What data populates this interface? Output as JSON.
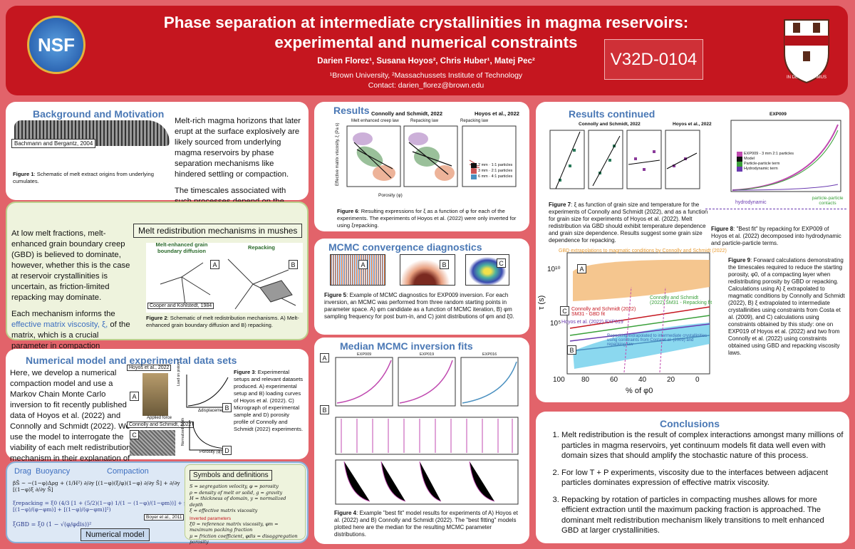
{
  "header": {
    "logo_left": "NSF",
    "title_line1": "Phase separation at intermediate crystallinities in magma reservoirs:",
    "title_line2": "experimental and numerical constraints",
    "authors": "Darien Florez¹, Susana Hoyos², Chris Huber¹, Matej Pec²",
    "affiliations": "¹Brown University, ²Massachussets Institute of Technology",
    "contact": "Contact: darien_florez@brown.edu",
    "poster_id": "V32D-0104",
    "logo_right_motto": "IN DEO SPERAMUS"
  },
  "background": {
    "heading": "Background and Motivation",
    "figure_credit": "Bachmann and Bergantz, 2004",
    "caption_label": "Figure 1",
    "caption": ": Schematic of melt extract origins from underlying cumulates.",
    "paragraphs": [
      "Melt-rich magma horizons that later erupt at the surface explosively are likely sourced from underlying magma reservoirs by phase separation mechanisms like hindered settling or compaction.",
      "The timescales associated with such processes depend on the \"melt redistribution\" mechanism, which operate at the grain scale."
    ]
  },
  "redistribution": {
    "paragraph1": "At low melt fractions, melt-enhanced grain boundary creep (GBD) is believed to dominate, however, whether this is the case at reservoir crystallinities is uncertain, as friction-limited repacking may dominate.",
    "paragraph2_start": "Each mechanism informs the ",
    "paragraph2_highlight": "effective matrix viscosity, ξ,",
    "paragraph2_end": " of the matrix, which is a crucial parameter in compaction calculations.",
    "box_title": "Melt redistribution mechanisms in mushes",
    "panel_a_title": "Melt-enhanced grain boundary diffusion",
    "panel_b_title": "Repacking",
    "panel_a_label": "A",
    "panel_b_label": "B",
    "figure_credit": "Cooper and Kohlstedt, 1984",
    "caption_label": "Figure 2",
    "caption": ": Schematic of melt redistribution mechanisms. A) Melt-enhanced grain boundary diffusion and B) repacking."
  },
  "numerical": {
    "heading": "Numerical model and experimental data sets",
    "paragraph": "Here, we develop a numerical compaction model and use a Markov Chain Monte Carlo inversion to fit recently published data of Hoyos et al. (2022) and Connolly and Schmidt (2022). We use the model to interrogate the viability of each melt redistribution mechanism in their explanation of the experimental data.",
    "credit_top": "Hoyos et al., 2022",
    "credit_bottom": "Connolly and Schmidt, 2022",
    "applied_force": "Applied force",
    "load_label": "Load on piston, t",
    "displacement_label": "Δdisplacement",
    "depth_label": "Normalized depth",
    "porosity_label": "Porosity (φ)",
    "labels": [
      "A",
      "B",
      "C",
      "D"
    ],
    "caption_label": "Figure 3",
    "caption": ": Experimental setups and relevant datasets produced. A) experimental setup and B) loading curves of Hoyos et al. (2022). C) Micrograph of experimental sample and D) porosity profile of Connolly and Schmidt (2022) experiments."
  },
  "equations": {
    "term_labels": [
      "Drag",
      "Buoyancy",
      "Compaction"
    ],
    "eq1": "βS̃ ~ −(1−φ)Δρg + (1/H²) ∂/∂y [(1−φ)(ξ/φ)(1−φ) ∂/∂y S̃] + ∂/∂y [(1−φ)ξ ∂/∂y S̃]",
    "eq2": "ξrepacking = ξ0 (4/3 [1 + (5/2)(1−φ) 1/(1 − (1−φ)/(1−φm))] + μ [(1−φ)/(φ−φm)] + [(1−φ)/(φ−φm)]²)",
    "eq3": "ξGBD = ξ0 (1 − √(φ/φdis))²",
    "citation": "Boyer et al., 2011",
    "panel_label": "Numerical model",
    "symbols_title": "Symbols and definitions",
    "symbols": [
      "S = segregation velocity, φ = porosity",
      "ρ = density of melt or solid, g = gravity",
      "H = thickness of domain, y = normalized depth",
      "ξ = effective matrix viscosity"
    ],
    "inverted_title": "Inverted parameters",
    "inverted": [
      "ξ0 = reference matrix viscosity, φm = maximum packing fraction",
      "μ = friction coefficient, φdis = disaggregation porosity"
    ]
  },
  "results": {
    "heading": "Results",
    "group_titles": [
      "Connolly and Schmidt, 2022",
      "Hoyos et al., 2022"
    ],
    "panel_titles": [
      "Melt enhanced creep law",
      "Repacking law",
      "Repacking law"
    ],
    "y_label": "Effective matrix viscosity, ξ (Pa s)",
    "x_label": "Porosity (φ)",
    "legend": [
      "2 mm · 1:1 particles",
      "3 mm · 2:1 particles",
      "6 mm · 4:1 particles"
    ],
    "caption_label": "Figure 6",
    "caption": ": Resulting expressions for ξ as a function of φ for each of the experiments. The experiments of Hoyos et al. (2022) were only inverted for using ξrepacking."
  },
  "mcmc": {
    "heading": "MCMC convergence diagnostics",
    "labels": [
      "A",
      "B",
      "C"
    ],
    "caption_label": "Figure 5",
    "caption": ": Example of MCMC diagnostics for EXP009 inversion. For each inversion, an MCMC was performed from three random starting points in parameter space. A) φm candidate as a function of MCMC iteration, B) φm sampling frequency for post burn-in, and C) joint distributions of φm and ξ0."
  },
  "median": {
    "heading": "Median MCMC inversion fits",
    "labels": [
      "A",
      "B"
    ],
    "experiments": [
      "EXP009",
      "EXP019",
      "EXP016"
    ],
    "caption_label": "Figure 4",
    "caption": ": Example \"best fit\" model results for experiments of A) Hoyos et al. (2022) and B) Connolly and Schmidt (2022). The \"best fitting\" models plotted here are the median for the resulting MCMC parameter distributions."
  },
  "continued": {
    "heading": "Results continued",
    "fig7_titles": [
      "Connolly and Schmidt, 2022",
      "Hoyos et al., 2022"
    ],
    "fig7_caption_label": "Figure 7",
    "fig7_caption": ": ξ as function of grain size and temperature for the experiments of Connolly and Schmidt (2022), and as a function for grain size for experiments of Hoyos et al. (2022). Melt redistribution via GBD should exhibit temperature dependence and grain size dependence. Results suggest some grain size dependence for repacking.",
    "fig8_title": "EXP009",
    "fig8_legend": [
      "EXP009 - 3 mm 2:1 particles",
      "Model",
      "Particle-particle term",
      "Hydrodynamic term"
    ],
    "fig8_terms": [
      "hydrodynamic",
      "particle-particle contacts"
    ],
    "fig8_caption_label": "Figure 8",
    "fig8_caption": ": \"Best fit\" by repacking for EXP009 of Hoyos et al. (2022) decomposed into hydrodynamic and particle-particle terms.",
    "fig9_band_title": "GBD extrapolations to magmatic conditions by Connolly and Schmidt (2022)",
    "fig9_lines": [
      "Connolly and Schmidt (2022) SM31 - GBD fit",
      "Hoyos et al. (2022) EXP019",
      "Connolly and Schmidt (2022) SM31 - Repacking fit",
      "Repacking extrapolated to intermediate crystallinities using constraints from Costa et al. (2009) and repacking law"
    ],
    "fig9_labels": [
      "A",
      "B",
      "C"
    ],
    "fig9_x_label": "% of φ0",
    "fig9_y_label": "τ (s)",
    "fig9_x_ticks": [
      "100",
      "80",
      "60",
      "40",
      "20",
      "0"
    ],
    "fig9_y_ticks": [
      "10¹⁰",
      "10⁵"
    ],
    "fig9_caption_label": "Figure 9",
    "fig9_caption": ": Forward calculations demonstrating the timescales required to reduce the starting porosity, φ0, of a compacting layer when redistributing porosity by GBD or repacking. Calculations using A) ξ extrapolated to magmatic conditions by Connolly and Schmidt (2022), B) ξ extrapolated to intermediate crystallinities using constraints from Costa et al. (2009), and C) calculations using constraints obtained by this study: one on EXP019 of Hoyos et al. (2022) and two from Connolly et al. (2022) using constraints obtained using GBD and repacking viscosity laws."
  },
  "conclusions": {
    "heading": "Conclusions",
    "items": [
      "Melt redistribution is the result of complex interactions amongst many millions of particles in magma reservoirs, yet continuum models fit data well even with domain sizes that should amplify the stochastic nature of this process.",
      "For low T + P experiments, viscosity due to the interfaces between adjacent particles dominates expression of effective matrix viscosity.",
      "Repacking by rotation of particles in compacting mushes allows for more efficient extraction until the maximum packing fraction is approached. The dominant melt redistribution mechanism likely transitions to melt enhanced GBD at larger crystallinities."
    ]
  }
}
